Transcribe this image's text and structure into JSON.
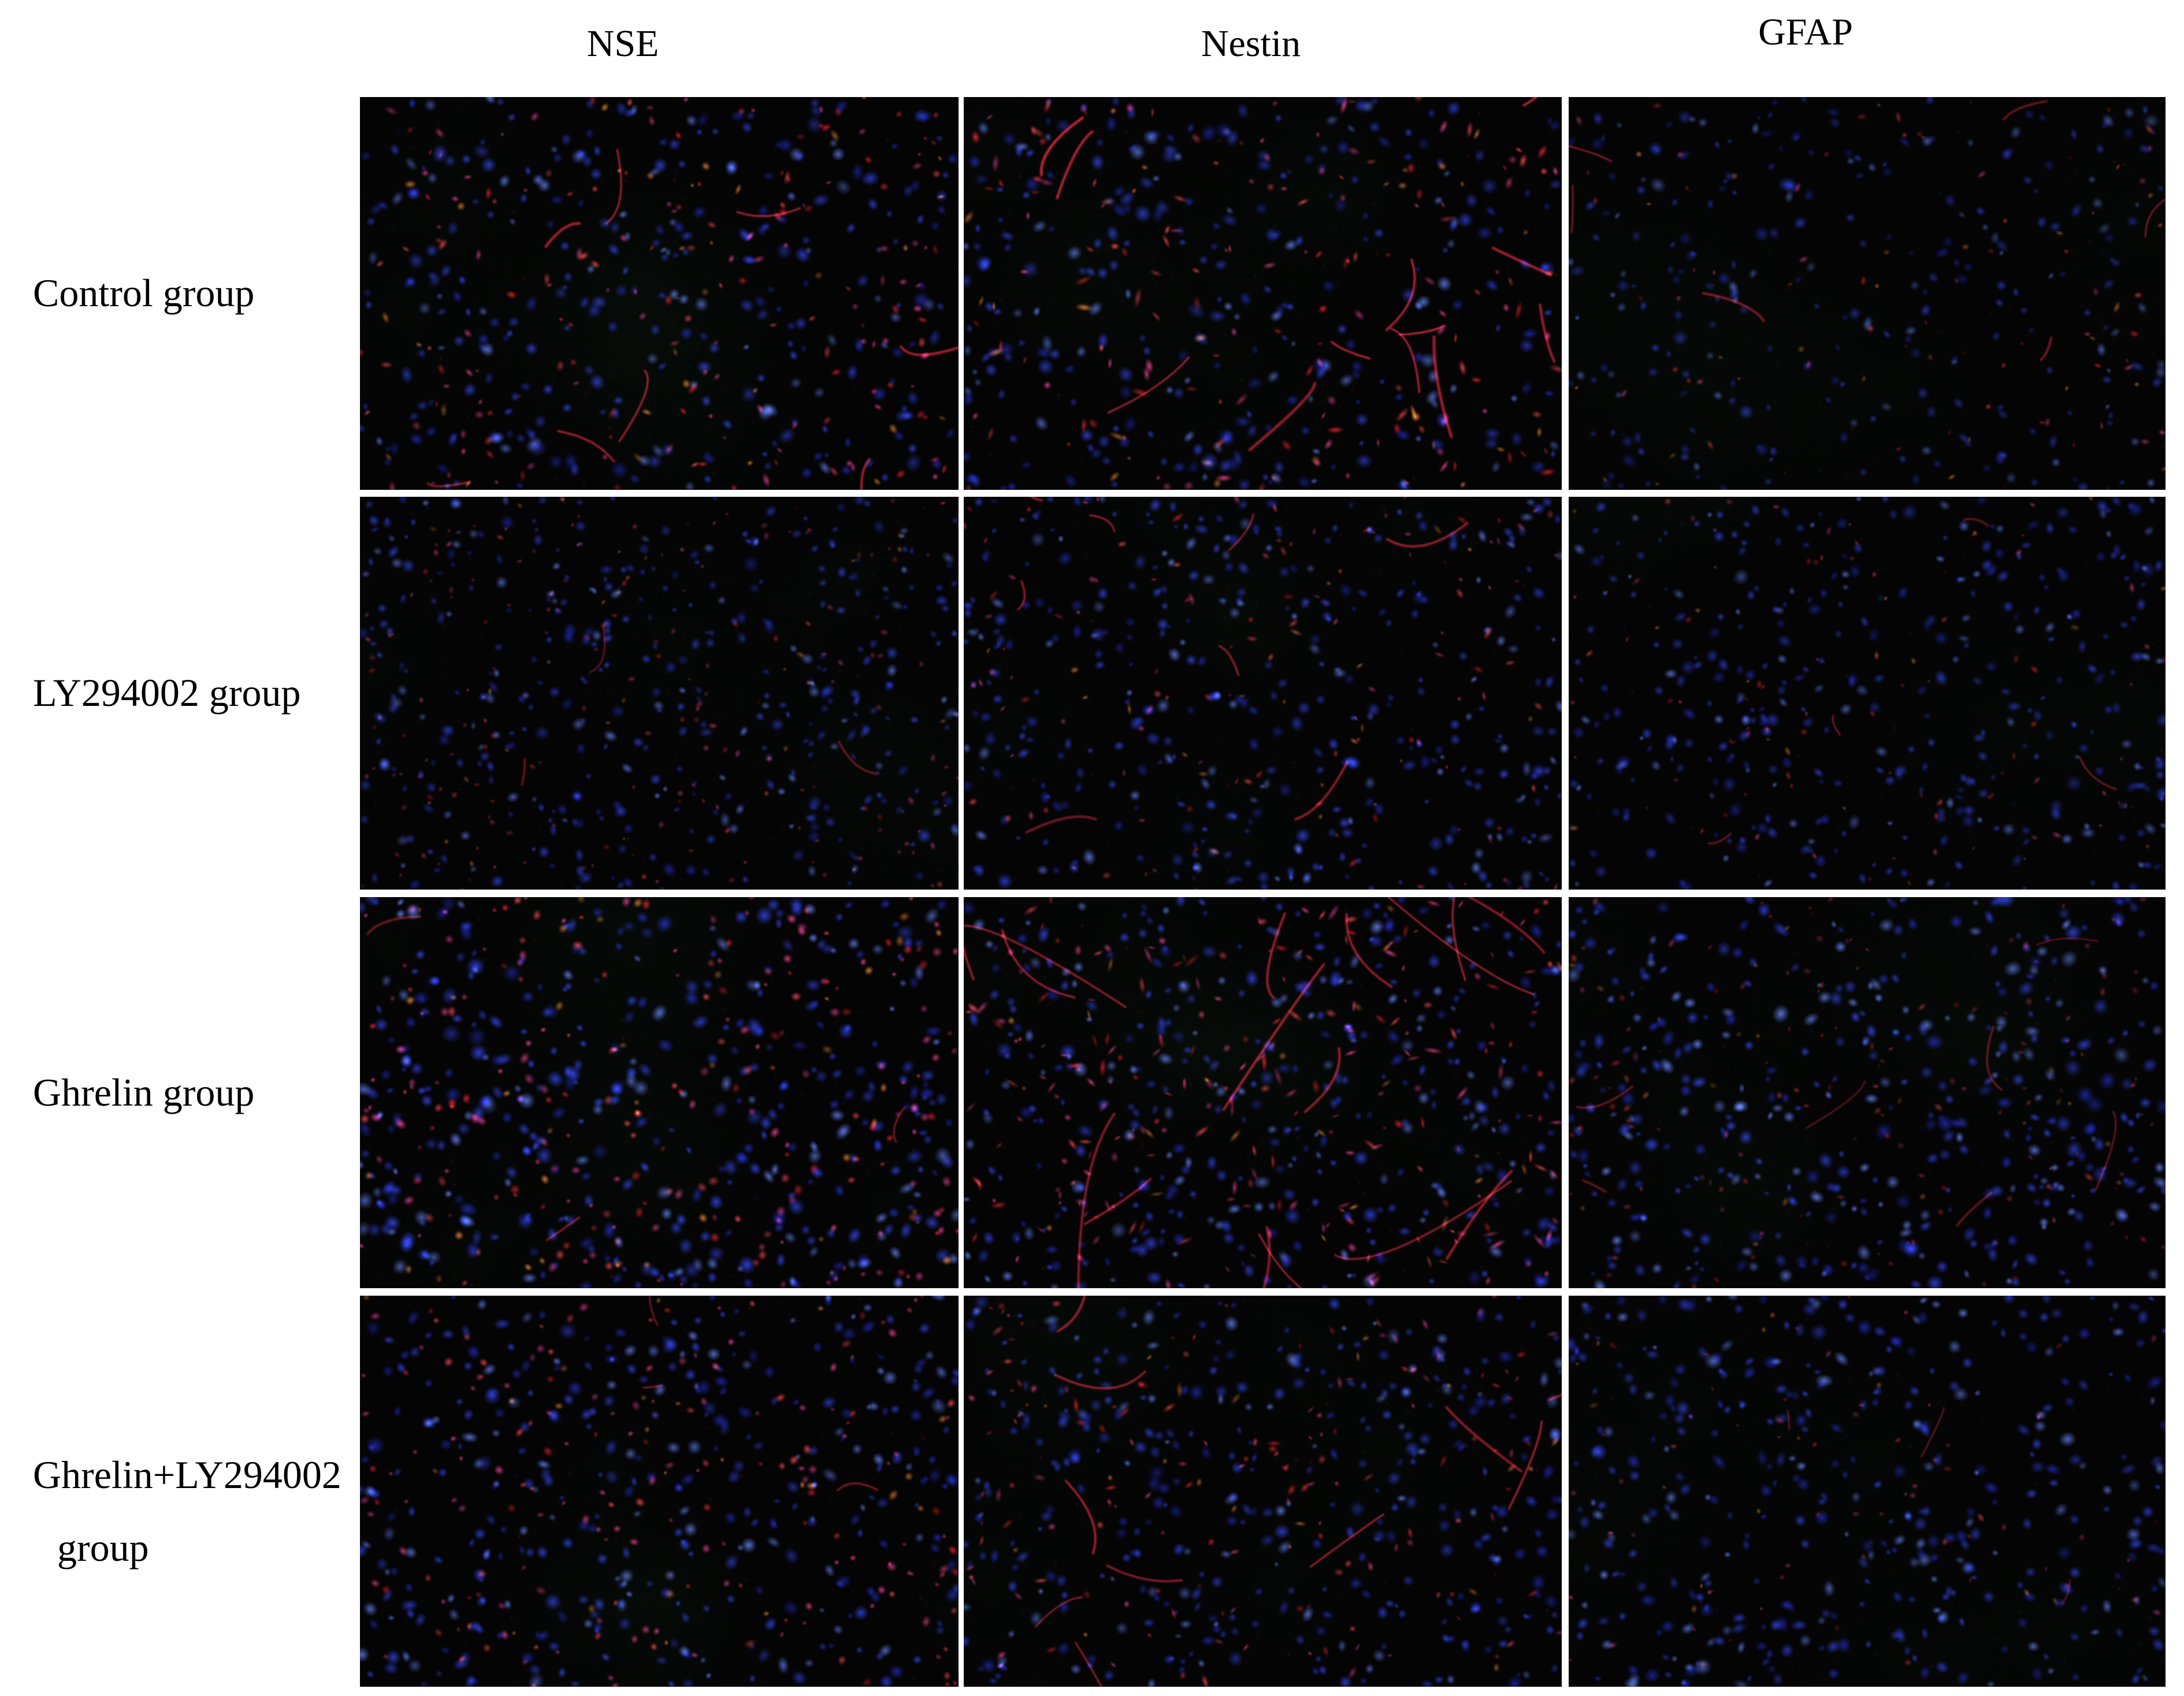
{
  "figure_type": "immunofluorescence micrograph grid",
  "column_headers": [
    "NSE",
    "Nestin",
    "GFAP"
  ],
  "rows": [
    {
      "line1": "Control group",
      "line2": ""
    },
    {
      "line1": "LY294002 group",
      "line2": ""
    },
    {
      "line1": "Ghrelin group",
      "line2": ""
    },
    {
      "line1": "Ghrelin+LY294002",
      "line2": "group"
    }
  ],
  "colors": {
    "page_background": "#ffffff",
    "text": "#000000",
    "separator": "#ffffff",
    "panel_background": "#040404",
    "dapi_blue_bright": "#6482ff",
    "dapi_blue": "#3042ee",
    "dapi_blue_dim": "#1e28be",
    "stain_red": "#eb202c",
    "stain_red_bright": "#ff4650",
    "stain_magenta": "#f04096",
    "stain_orange": "#eb822d",
    "haze_green": "#144623"
  },
  "panels": [
    {
      "group": "Control group",
      "marker": "NSE",
      "render": {
        "seed": 11,
        "haze": 6,
        "noise": 180,
        "blue": {
          "count": 290,
          "rmin": 3.0,
          "rmax": 6.5,
          "alpha": 0.8
        },
        "red": {
          "count": 200,
          "rmin": 1.8,
          "rmax": 4.2,
          "alpha": 0.85,
          "elong": 1.7,
          "magenta": 0.3,
          "orange": 0.18
        },
        "fibers": {
          "count": 8,
          "lmin": 20,
          "lmax": 70,
          "alpha": 0.5,
          "width": 2.2
        }
      }
    },
    {
      "group": "Control group",
      "marker": "Nestin",
      "render": {
        "seed": 22,
        "haze": 6,
        "noise": 180,
        "blue": {
          "count": 280,
          "rmin": 3.0,
          "rmax": 6.5,
          "alpha": 0.8
        },
        "red": {
          "count": 175,
          "rmin": 2.0,
          "rmax": 4.5,
          "alpha": 0.9,
          "elong": 2.1,
          "magenta": 0.28,
          "orange": 0.12
        },
        "fibers": {
          "count": 12,
          "lmin": 25,
          "lmax": 90,
          "alpha": 0.55,
          "width": 2.4
        }
      }
    },
    {
      "group": "Control group",
      "marker": "GFAP",
      "render": {
        "seed": 33,
        "haze": 5,
        "noise": 160,
        "blue": {
          "count": 250,
          "rmin": 2.6,
          "rmax": 5.8,
          "alpha": 0.65
        },
        "red": {
          "count": 85,
          "rmin": 1.6,
          "rmax": 3.6,
          "alpha": 0.7,
          "elong": 1.7,
          "magenta": 0.22,
          "orange": 0.25
        },
        "fibers": {
          "count": 6,
          "lmin": 18,
          "lmax": 60,
          "alpha": 0.4,
          "width": 1.8
        }
      }
    },
    {
      "group": "LY294002 group",
      "marker": "NSE",
      "render": {
        "seed": 44,
        "haze": 6,
        "noise": 190,
        "blue": {
          "count": 380,
          "rmin": 2.4,
          "rmax": 5.6,
          "alpha": 0.75
        },
        "red": {
          "count": 200,
          "rmin": 1.5,
          "rmax": 3.4,
          "alpha": 0.6,
          "elong": 1.4,
          "magenta": 0.45,
          "orange": 0.2
        },
        "fibers": {
          "count": 3,
          "lmin": 15,
          "lmax": 45,
          "alpha": 0.35,
          "width": 1.6
        }
      }
    },
    {
      "group": "LY294002 group",
      "marker": "Nestin",
      "render": {
        "seed": 55,
        "haze": 6,
        "noise": 180,
        "blue": {
          "count": 370,
          "rmin": 2.5,
          "rmax": 5.8,
          "alpha": 0.8
        },
        "red": {
          "count": 135,
          "rmin": 1.6,
          "rmax": 3.8,
          "alpha": 0.75,
          "elong": 1.9,
          "magenta": 0.32,
          "orange": 0.15
        },
        "fibers": {
          "count": 8,
          "lmin": 20,
          "lmax": 80,
          "alpha": 0.45,
          "width": 2.0
        }
      }
    },
    {
      "group": "LY294002 group",
      "marker": "GFAP",
      "render": {
        "seed": 66,
        "haze": 5,
        "noise": 170,
        "blue": {
          "count": 355,
          "rmin": 2.5,
          "rmax": 5.8,
          "alpha": 0.75
        },
        "red": {
          "count": 95,
          "rmin": 1.5,
          "rmax": 3.4,
          "alpha": 0.65,
          "elong": 1.6,
          "magenta": 0.28,
          "orange": 0.2
        },
        "fibers": {
          "count": 4,
          "lmin": 15,
          "lmax": 55,
          "alpha": 0.35,
          "width": 1.7
        }
      }
    },
    {
      "group": "Ghrelin group",
      "marker": "NSE",
      "render": {
        "seed": 77,
        "haze": 7,
        "noise": 190,
        "blue": {
          "count": 390,
          "rmin": 3.0,
          "rmax": 6.8,
          "alpha": 0.88
        },
        "red": {
          "count": 255,
          "rmin": 2.0,
          "rmax": 4.8,
          "alpha": 0.9,
          "elong": 1.25,
          "magenta": 0.42,
          "orange": 0.15
        },
        "fibers": {
          "count": 3,
          "lmin": 15,
          "lmax": 50,
          "alpha": 0.4,
          "width": 1.8
        }
      }
    },
    {
      "group": "Ghrelin group",
      "marker": "Nestin",
      "render": {
        "seed": 88,
        "haze": 7,
        "noise": 190,
        "blue": {
          "count": 375,
          "rmin": 2.8,
          "rmax": 6.2,
          "alpha": 0.82
        },
        "red": {
          "count": 245,
          "rmin": 1.7,
          "rmax": 4.3,
          "alpha": 0.85,
          "elong": 2.4,
          "magenta": 0.38,
          "orange": 0.12
        },
        "fibers": {
          "count": 16,
          "lmin": 60,
          "lmax": 180,
          "alpha": 0.5,
          "width": 2.2
        }
      }
    },
    {
      "group": "Ghrelin group",
      "marker": "GFAP",
      "render": {
        "seed": 99,
        "haze": 8,
        "noise": 190,
        "blue": {
          "count": 395,
          "rmin": 2.8,
          "rmax": 6.5,
          "alpha": 0.85
        },
        "red": {
          "count": 150,
          "rmin": 1.6,
          "rmax": 3.8,
          "alpha": 0.55,
          "elong": 1.5,
          "magenta": 0.3,
          "orange": 0.2
        },
        "fibers": {
          "count": 7,
          "lmin": 20,
          "lmax": 70,
          "alpha": 0.35,
          "width": 1.8
        }
      }
    },
    {
      "group": "Ghrelin+LY294002 group",
      "marker": "NSE",
      "render": {
        "seed": 111,
        "haze": 6,
        "noise": 180,
        "blue": {
          "count": 350,
          "rmin": 2.8,
          "rmax": 6.4,
          "alpha": 0.82
        },
        "red": {
          "count": 195,
          "rmin": 1.9,
          "rmax": 4.4,
          "alpha": 0.85,
          "elong": 1.3,
          "magenta": 0.45,
          "orange": 0.12
        },
        "fibers": {
          "count": 3,
          "lmin": 15,
          "lmax": 50,
          "alpha": 0.4,
          "width": 1.8
        }
      }
    },
    {
      "group": "Ghrelin+LY294002 group",
      "marker": "Nestin",
      "render": {
        "seed": 122,
        "haze": 6,
        "noise": 180,
        "blue": {
          "count": 355,
          "rmin": 2.7,
          "rmax": 6.0,
          "alpha": 0.8
        },
        "red": {
          "count": 165,
          "rmin": 1.7,
          "rmax": 4.0,
          "alpha": 0.8,
          "elong": 2.0,
          "magenta": 0.35,
          "orange": 0.12
        },
        "fibers": {
          "count": 10,
          "lmin": 25,
          "lmax": 90,
          "alpha": 0.5,
          "width": 2.1
        }
      }
    },
    {
      "group": "Ghrelin+LY294002 group",
      "marker": "GFAP",
      "render": {
        "seed": 133,
        "haze": 5,
        "noise": 170,
        "blue": {
          "count": 375,
          "rmin": 2.8,
          "rmax": 6.4,
          "alpha": 0.8
        },
        "red": {
          "count": 75,
          "rmin": 1.5,
          "rmax": 3.4,
          "alpha": 0.65,
          "elong": 1.5,
          "magenta": 0.3,
          "orange": 0.2
        },
        "fibers": {
          "count": 3,
          "lmin": 15,
          "lmax": 50,
          "alpha": 0.35,
          "width": 1.6
        }
      }
    }
  ]
}
